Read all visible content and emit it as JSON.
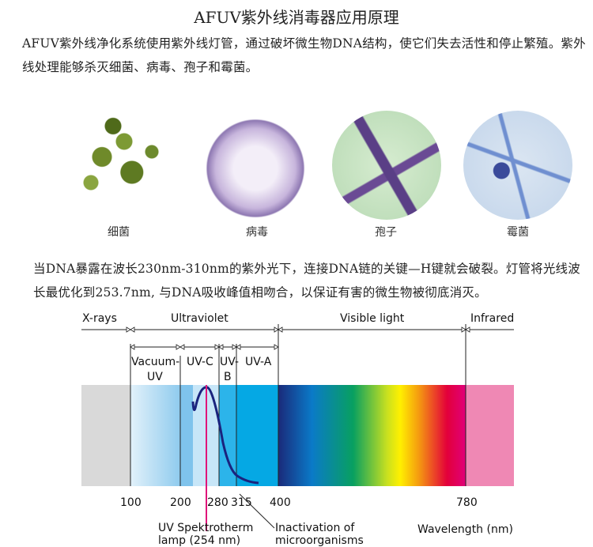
{
  "title": "AFUV紫外线消毒器应用原理",
  "intro": "AFUV紫外线净化系统使用紫外线灯管，通过破坏微生物DNA结构，使它们失去活性和停止繁殖。紫外线处理能够杀灭细菌、病毒、孢子和霉菌。",
  "microbes": [
    {
      "label": "细菌",
      "icon": "bacteria-image"
    },
    {
      "label": "病毒",
      "icon": "virus-image"
    },
    {
      "label": "孢子",
      "icon": "spore-image"
    },
    {
      "label": "霉菌",
      "icon": "mold-image"
    }
  ],
  "explanation": "当DNA暴露在波长230nm-310nm的紫外光下，连接DNA链的关键—H键就会破裂。灯管将光线波长最优化到253.7nm, 与DNA吸收峰值相吻合，以保证有害的微生物被彻底消灭。",
  "spectrum": {
    "regions": {
      "xrays": "X-rays",
      "uv": "Ultraviolet",
      "visible": "Visible light",
      "ir": "Infrared"
    },
    "uv_bands": {
      "vacuum1": "Vacuum-",
      "vacuum2": "UV",
      "uvc": "UV-C",
      "uvb1": "UV-",
      "uvb2": "B",
      "uva": "UV-A"
    },
    "ticks": [
      "100",
      "200",
      "280",
      "315",
      "400",
      "780"
    ],
    "lamp_label1": "UV Spektrotherm",
    "lamp_label2": "lamp (254 nm)",
    "inactivation_label1": "Inactivation of",
    "inactivation_label2": "microorganisms",
    "axis_label": "Wavelength (nm)",
    "colors": {
      "curve": "#1a237e",
      "lamp_line": "#e0157a",
      "xray": "#d9d9d9",
      "ir": "#ef88b4"
    }
  }
}
